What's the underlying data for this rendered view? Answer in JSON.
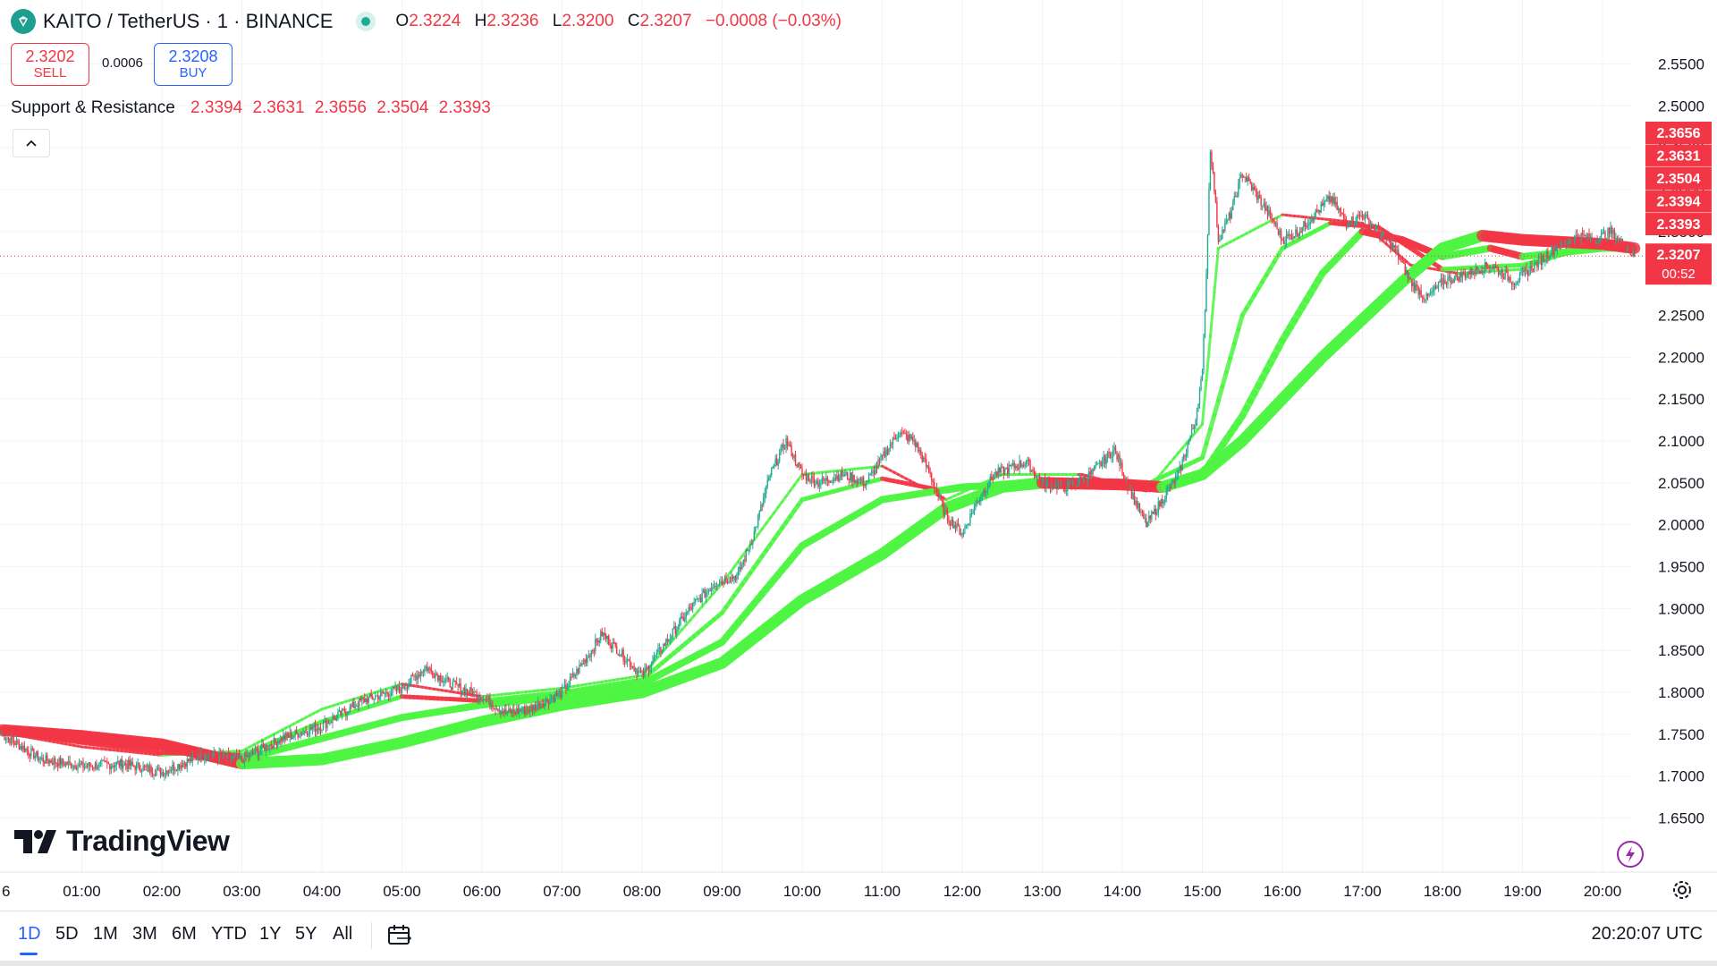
{
  "header": {
    "symbol_title": "KAITO / TetherUS · 1 · BINANCE",
    "ohlc": {
      "o_label": "O",
      "o": "2.3224",
      "h_label": "H",
      "h": "2.3236",
      "l_label": "L",
      "l": "2.3200",
      "c_label": "C",
      "c": "2.3207",
      "change": "−0.0008 (−0.03%)"
    }
  },
  "trade": {
    "sell_price": "2.3202",
    "sell_label": "SELL",
    "spread": "0.0006",
    "buy_price": "2.3208",
    "buy_label": "BUY"
  },
  "indicator": {
    "name": "Support & Resistance",
    "values": [
      "2.3394",
      "2.3631",
      "2.3656",
      "2.3504",
      "2.3393"
    ]
  },
  "branding": {
    "logo_text": "TradingView"
  },
  "bottom_bar": {
    "ranges": [
      "1D",
      "5D",
      "1M",
      "3M",
      "6M",
      "YTD",
      "1Y",
      "5Y",
      "All"
    ],
    "active_range": "1D",
    "clock": "20:20:07 UTC"
  },
  "colors": {
    "bull": "#22ab94",
    "bear": "#f23645",
    "ribbon_up": "#4ef542",
    "ribbon_down": "#f23645",
    "accent": "#2962ff"
  },
  "icons": [
    "coin-logo-icon",
    "live-status-icon",
    "chevron-up-icon",
    "calendar-range-icon",
    "gear-icon",
    "lightning-icon"
  ],
  "chart_data": {
    "type": "candlestick",
    "interval": "1m",
    "x_ticks": [
      "6",
      "01:00",
      "02:00",
      "03:00",
      "04:00",
      "05:00",
      "06:00",
      "07:00",
      "08:00",
      "09:00",
      "10:00",
      "11:00",
      "12:00",
      "13:00",
      "14:00",
      "15:00",
      "16:00",
      "17:00",
      "18:00",
      "19:00",
      "20:00"
    ],
    "y_ticks": [
      "2.5500",
      "2.5000",
      "2.4500",
      "2.4000",
      "2.3500",
      "2.3000",
      "2.2500",
      "2.2000",
      "2.1500",
      "2.1000",
      "2.0500",
      "2.0000",
      "1.9500",
      "1.9000",
      "1.8500",
      "1.8000",
      "1.7500",
      "1.7000",
      "1.6500"
    ],
    "ylim": [
      1.625,
      2.575
    ],
    "last_price": "2.3207",
    "countdown": "00:52",
    "price_labels": [
      "2.3656",
      "2.3631",
      "2.3504",
      "2.3394",
      "2.3393"
    ],
    "price_path": [
      [
        0.0,
        1.75
      ],
      [
        0.5,
        1.72
      ],
      [
        1.0,
        1.712
      ],
      [
        1.5,
        1.715
      ],
      [
        2.0,
        1.705
      ],
      [
        2.5,
        1.725
      ],
      [
        3.0,
        1.72
      ],
      [
        3.5,
        1.745
      ],
      [
        4.0,
        1.76
      ],
      [
        4.5,
        1.79
      ],
      [
        5.0,
        1.805
      ],
      [
        5.3,
        1.83
      ],
      [
        5.6,
        1.81
      ],
      [
        6.0,
        1.795
      ],
      [
        6.3,
        1.775
      ],
      [
        6.6,
        1.78
      ],
      [
        7.0,
        1.8
      ],
      [
        7.3,
        1.84
      ],
      [
        7.5,
        1.87
      ],
      [
        7.8,
        1.84
      ],
      [
        8.0,
        1.82
      ],
      [
        8.3,
        1.86
      ],
      [
        8.6,
        1.9
      ],
      [
        8.9,
        1.93
      ],
      [
        9.2,
        1.94
      ],
      [
        9.4,
        1.99
      ],
      [
        9.6,
        2.06
      ],
      [
        9.8,
        2.1
      ],
      [
        10.0,
        2.06
      ],
      [
        10.2,
        2.05
      ],
      [
        10.5,
        2.06
      ],
      [
        10.8,
        2.05
      ],
      [
        11.0,
        2.08
      ],
      [
        11.2,
        2.11
      ],
      [
        11.4,
        2.1
      ],
      [
        11.6,
        2.06
      ],
      [
        11.8,
        2.01
      ],
      [
        12.0,
        1.99
      ],
      [
        12.2,
        2.03
      ],
      [
        12.4,
        2.06
      ],
      [
        12.8,
        2.075
      ],
      [
        13.0,
        2.05
      ],
      [
        13.3,
        2.045
      ],
      [
        13.6,
        2.06
      ],
      [
        13.9,
        2.09
      ],
      [
        14.1,
        2.04
      ],
      [
        14.3,
        2.0
      ],
      [
        14.5,
        2.03
      ],
      [
        14.7,
        2.06
      ],
      [
        14.9,
        2.12
      ],
      [
        15.0,
        2.18
      ],
      [
        15.05,
        2.3
      ],
      [
        15.1,
        2.45
      ],
      [
        15.15,
        2.4
      ],
      [
        15.2,
        2.34
      ],
      [
        15.35,
        2.37
      ],
      [
        15.5,
        2.42
      ],
      [
        15.7,
        2.39
      ],
      [
        15.9,
        2.36
      ],
      [
        16.0,
        2.34
      ],
      [
        16.2,
        2.35
      ],
      [
        16.4,
        2.37
      ],
      [
        16.6,
        2.39
      ],
      [
        16.8,
        2.36
      ],
      [
        17.0,
        2.37
      ],
      [
        17.2,
        2.35
      ],
      [
        17.4,
        2.33
      ],
      [
        17.6,
        2.29
      ],
      [
        17.8,
        2.27
      ],
      [
        18.0,
        2.29
      ],
      [
        18.3,
        2.3
      ],
      [
        18.6,
        2.31
      ],
      [
        18.9,
        2.29
      ],
      [
        19.1,
        2.305
      ],
      [
        19.4,
        2.33
      ],
      [
        19.7,
        2.345
      ],
      [
        19.9,
        2.34
      ],
      [
        20.1,
        2.35
      ],
      [
        20.3,
        2.33
      ],
      [
        20.4,
        2.3207
      ]
    ],
    "ribbons": [
      {
        "name": "",
        "width": 3,
        "points": [
          [
            0,
            1.752
          ],
          [
            1,
            1.735
          ],
          [
            2,
            1.725
          ],
          [
            3,
            1.73
          ],
          [
            4,
            1.78
          ],
          [
            5,
            1.81
          ],
          [
            6,
            1.795
          ],
          [
            7,
            1.805
          ],
          [
            8,
            1.82
          ],
          [
            9,
            1.93
          ],
          [
            10,
            2.06
          ],
          [
            11,
            2.07
          ],
          [
            11.8,
            2.03
          ],
          [
            12.5,
            2.06
          ],
          [
            13.5,
            2.06
          ],
          [
            14.3,
            2.04
          ],
          [
            15,
            2.12
          ],
          [
            15.2,
            2.33
          ],
          [
            16,
            2.37
          ],
          [
            17,
            2.36
          ],
          [
            17.6,
            2.31
          ],
          [
            18.2,
            2.3
          ],
          [
            19,
            2.305
          ],
          [
            20,
            2.34
          ],
          [
            20.4,
            2.33
          ]
        ]
      },
      {
        "name": "",
        "width": 5,
        "points": [
          [
            0,
            1.753
          ],
          [
            1,
            1.74
          ],
          [
            2,
            1.728
          ],
          [
            3,
            1.725
          ],
          [
            4,
            1.765
          ],
          [
            5,
            1.795
          ],
          [
            6,
            1.79
          ],
          [
            7,
            1.8
          ],
          [
            8,
            1.815
          ],
          [
            9,
            1.895
          ],
          [
            10,
            2.03
          ],
          [
            11,
            2.055
          ],
          [
            11.8,
            2.04
          ],
          [
            12.5,
            2.05
          ],
          [
            13.5,
            2.052
          ],
          [
            14.3,
            2.048
          ],
          [
            15,
            2.08
          ],
          [
            15.5,
            2.25
          ],
          [
            16,
            2.33
          ],
          [
            16.6,
            2.36
          ],
          [
            17.2,
            2.355
          ],
          [
            18,
            2.305
          ],
          [
            19,
            2.31
          ],
          [
            20,
            2.335
          ],
          [
            20.4,
            2.33
          ]
        ]
      },
      {
        "name": "",
        "width": 8,
        "points": [
          [
            0,
            1.755
          ],
          [
            1,
            1.743
          ],
          [
            2,
            1.735
          ],
          [
            3,
            1.72
          ],
          [
            4,
            1.745
          ],
          [
            5,
            1.77
          ],
          [
            6,
            1.785
          ],
          [
            7,
            1.795
          ],
          [
            8,
            1.81
          ],
          [
            9,
            1.86
          ],
          [
            10,
            1.975
          ],
          [
            11,
            2.03
          ],
          [
            12,
            2.045
          ],
          [
            13,
            2.05
          ],
          [
            14,
            2.05
          ],
          [
            14.5,
            2.045
          ],
          [
            15,
            2.06
          ],
          [
            15.5,
            2.13
          ],
          [
            16,
            2.22
          ],
          [
            16.5,
            2.3
          ],
          [
            17,
            2.35
          ],
          [
            17.5,
            2.34
          ],
          [
            18,
            2.32
          ],
          [
            18.6,
            2.33
          ],
          [
            19,
            2.32
          ],
          [
            20,
            2.33
          ],
          [
            20.4,
            2.33
          ]
        ]
      },
      {
        "name": "",
        "width": 13,
        "points": [
          [
            0,
            1.755
          ],
          [
            1,
            1.748
          ],
          [
            2,
            1.738
          ],
          [
            3,
            1.715
          ],
          [
            4,
            1.72
          ],
          [
            5,
            1.74
          ],
          [
            6,
            1.765
          ],
          [
            7,
            1.785
          ],
          [
            8,
            1.8
          ],
          [
            9,
            1.835
          ],
          [
            10,
            1.91
          ],
          [
            11,
            1.965
          ],
          [
            11.8,
            2.02
          ],
          [
            12.5,
            2.045
          ],
          [
            13,
            2.05
          ],
          [
            14,
            2.048
          ],
          [
            14.5,
            2.045
          ],
          [
            15,
            2.06
          ],
          [
            15.5,
            2.1
          ],
          [
            16,
            2.15
          ],
          [
            16.5,
            2.2
          ],
          [
            17,
            2.245
          ],
          [
            17.5,
            2.29
          ],
          [
            18,
            2.33
          ],
          [
            18.5,
            2.345
          ],
          [
            19,
            2.34
          ],
          [
            20,
            2.335
          ],
          [
            20.4,
            2.33
          ]
        ]
      }
    ]
  }
}
